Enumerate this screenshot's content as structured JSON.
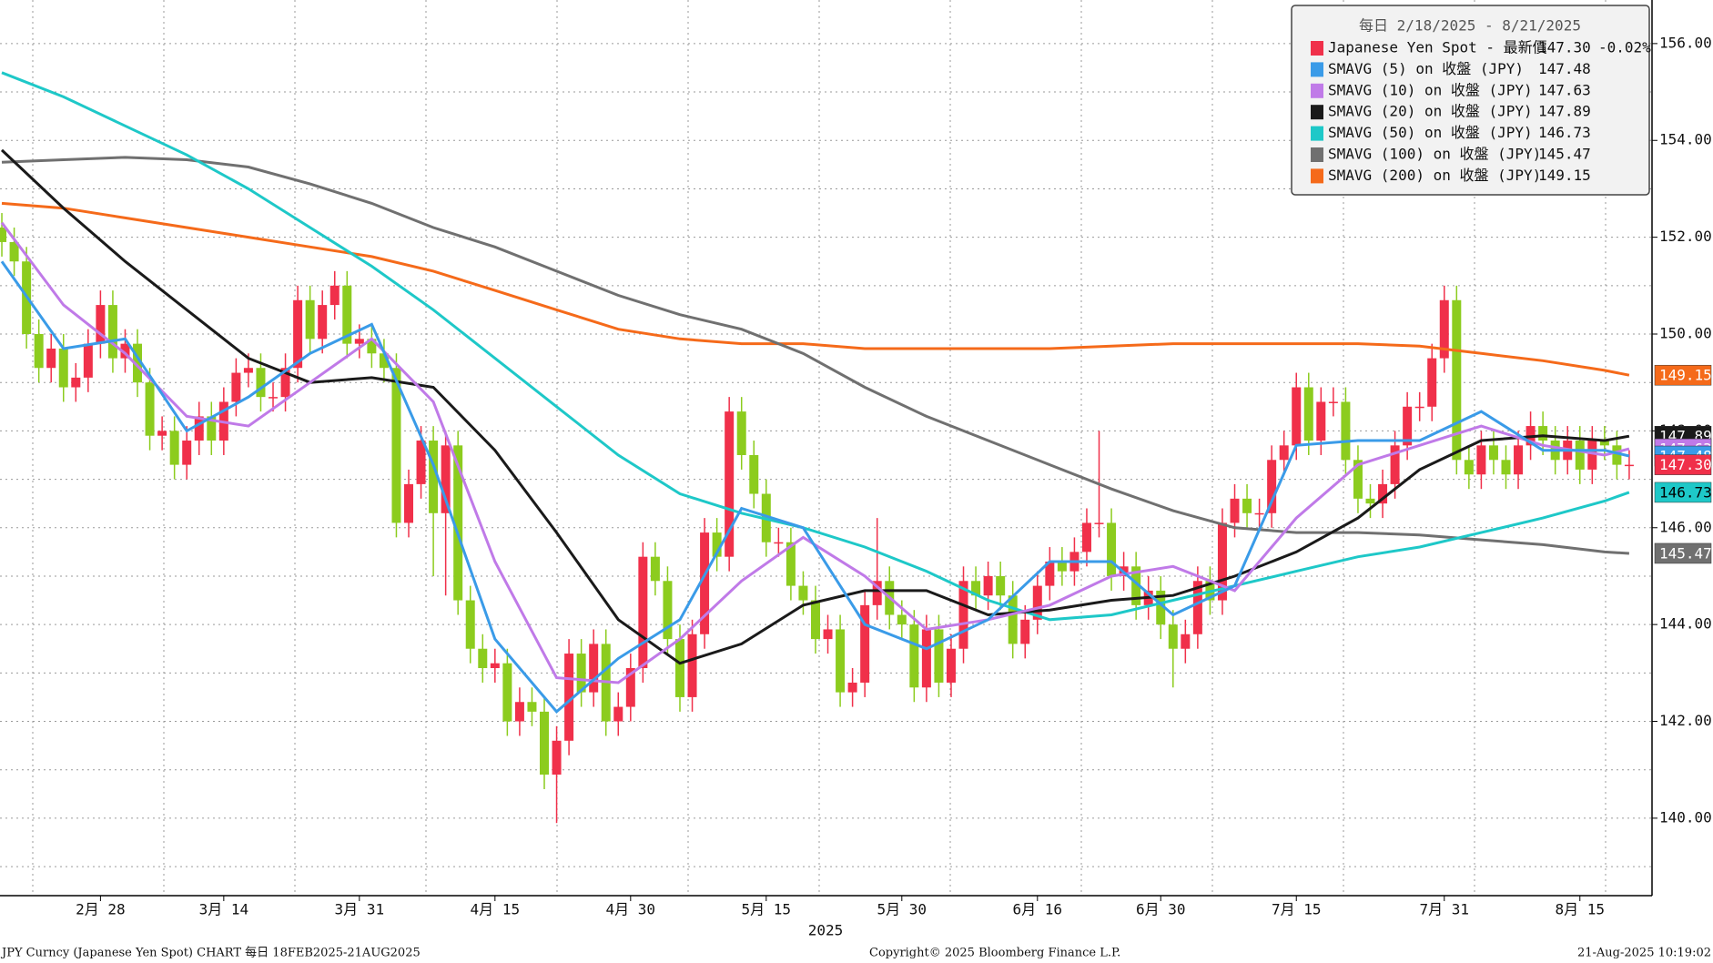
{
  "chart_data": {
    "type": "candlestick",
    "legend_title": "每日 2/18/2025 - 8/21/2025",
    "categories": [
      null,
      null,
      null,
      null,
      null,
      null,
      null,
      null,
      "2月 28",
      null,
      null,
      null,
      null,
      null,
      null,
      null,
      null,
      null,
      "3月 14",
      null,
      null,
      null,
      null,
      null,
      null,
      null,
      null,
      null,
      null,
      "3月 31",
      null,
      null,
      null,
      null,
      null,
      null,
      null,
      null,
      null,
      null,
      "4月 15",
      null,
      null,
      null,
      null,
      null,
      null,
      null,
      null,
      null,
      null,
      "4月 30",
      null,
      null,
      null,
      null,
      null,
      null,
      null,
      null,
      null,
      null,
      "5月 15",
      null,
      null,
      null,
      null,
      null,
      null,
      null,
      null,
      null,
      null,
      "5月 30",
      null,
      null,
      null,
      null,
      null,
      null,
      null,
      null,
      null,
      null,
      "6月 16",
      null,
      null,
      null,
      null,
      null,
      null,
      null,
      null,
      null,
      "6月 30",
      null,
      null,
      null,
      null,
      null,
      null,
      null,
      null,
      null,
      null,
      "7月 15",
      null,
      null,
      null,
      null,
      null,
      null,
      null,
      null,
      null,
      null,
      null,
      "7月 31",
      null,
      null,
      null,
      null,
      null,
      null,
      null,
      null,
      null,
      null,
      "8月 15",
      null,
      null,
      null,
      null
    ],
    "open": [
      152.2,
      151.9,
      151.5,
      150.0,
      149.3,
      149.7,
      148.9,
      149.1,
      149.8,
      150.6,
      149.5,
      149.8,
      149.0,
      147.9,
      148.0,
      147.3,
      147.8,
      148.3,
      147.8,
      148.6,
      149.2,
      149.3,
      148.7,
      148.7,
      149.3,
      150.7,
      149.9,
      150.6,
      151.0,
      149.8,
      149.9,
      149.6,
      149.3,
      146.1,
      146.9,
      147.8,
      146.3,
      147.7,
      144.5,
      143.5,
      143.1,
      143.2,
      142.0,
      142.4,
      142.2,
      140.9,
      141.6,
      143.4,
      142.6,
      143.6,
      142.0,
      142.3,
      143.1,
      145.4,
      144.9,
      143.7,
      142.5,
      143.8,
      145.9,
      145.4,
      148.4,
      147.5,
      146.7,
      145.7,
      145.7,
      144.8,
      144.5,
      143.7,
      143.9,
      142.6,
      142.8,
      144.4,
      144.9,
      144.2,
      144.0,
      142.7,
      143.9,
      142.8,
      143.5,
      144.9,
      144.6,
      145.0,
      144.6,
      143.6,
      144.1,
      144.8,
      145.3,
      145.1,
      145.5,
      146.1,
      146.1,
      145.0,
      145.2,
      144.4,
      144.7,
      144.0,
      143.5,
      143.8,
      144.9,
      144.5,
      146.1,
      146.6,
      146.3,
      146.3,
      147.4,
      147.7,
      148.9,
      147.8,
      148.6,
      148.6,
      147.4,
      146.6,
      146.5,
      146.9,
      147.7,
      148.5,
      148.5,
      149.5,
      150.7,
      147.4,
      147.1,
      147.7,
      147.4,
      147.1,
      147.7,
      148.1,
      147.8,
      147.4,
      147.8,
      147.2,
      147.8,
      147.7,
      147.3
    ],
    "high": [
      152.5,
      152.2,
      151.8,
      150.3,
      150.0,
      150.0,
      149.4,
      150.1,
      150.9,
      150.9,
      150.1,
      150.1,
      149.3,
      148.3,
      148.3,
      148.1,
      148.6,
      148.6,
      148.9,
      149.5,
      149.6,
      149.6,
      149.0,
      149.6,
      151.0,
      151.0,
      150.9,
      151.3,
      151.3,
      150.2,
      150.2,
      149.9,
      149.6,
      147.2,
      148.1,
      148.1,
      148.0,
      148.0,
      144.8,
      143.8,
      143.5,
      143.5,
      142.7,
      142.7,
      142.5,
      141.9,
      143.7,
      143.7,
      143.9,
      143.9,
      142.6,
      143.4,
      145.7,
      145.7,
      145.2,
      144.0,
      144.1,
      146.2,
      146.2,
      148.7,
      148.7,
      147.8,
      147.0,
      146.0,
      146.0,
      145.1,
      144.8,
      144.2,
      144.2,
      143.1,
      144.7,
      146.2,
      145.2,
      144.5,
      144.3,
      144.2,
      144.2,
      143.8,
      145.2,
      145.2,
      145.3,
      145.3,
      144.9,
      144.4,
      145.1,
      145.6,
      145.6,
      145.8,
      146.4,
      148.0,
      146.4,
      145.5,
      145.5,
      145.0,
      145.0,
      144.3,
      144.1,
      145.2,
      145.2,
      146.4,
      146.9,
      146.9,
      146.6,
      147.7,
      148.0,
      149.2,
      149.2,
      148.9,
      148.9,
      148.9,
      147.7,
      146.9,
      147.2,
      148.0,
      148.8,
      148.8,
      149.8,
      151.0,
      151.0,
      147.7,
      148.0,
      148.0,
      147.7,
      148.0,
      148.4,
      148.4,
      148.1,
      148.1,
      148.1,
      148.1,
      148.1,
      148.0,
      147.6
    ],
    "low": [
      151.6,
      151.2,
      149.7,
      149.0,
      149.0,
      148.6,
      148.6,
      148.8,
      149.5,
      149.2,
      149.2,
      148.7,
      147.6,
      147.6,
      147.0,
      147.0,
      147.5,
      147.5,
      147.5,
      148.3,
      148.9,
      148.4,
      148.4,
      148.4,
      149.0,
      149.6,
      149.6,
      150.3,
      149.5,
      149.5,
      149.3,
      149.0,
      145.8,
      145.8,
      146.6,
      145.0,
      144.6,
      144.2,
      143.2,
      142.8,
      142.8,
      141.7,
      141.7,
      141.9,
      140.6,
      139.9,
      141.3,
      142.3,
      142.3,
      141.7,
      141.7,
      142.0,
      142.8,
      144.6,
      143.4,
      142.2,
      142.2,
      143.5,
      145.1,
      145.1,
      147.2,
      146.4,
      145.4,
      145.4,
      144.5,
      144.2,
      143.4,
      143.4,
      142.3,
      142.3,
      142.5,
      144.1,
      143.9,
      143.7,
      142.4,
      142.4,
      142.5,
      142.5,
      143.2,
      144.3,
      144.3,
      144.3,
      143.3,
      143.3,
      143.8,
      144.5,
      144.8,
      144.8,
      145.2,
      145.8,
      144.7,
      144.7,
      144.1,
      144.1,
      143.7,
      142.7,
      143.2,
      143.5,
      144.2,
      144.2,
      145.8,
      146.0,
      146.0,
      146.0,
      147.1,
      147.4,
      147.5,
      147.5,
      148.3,
      147.1,
      146.3,
      146.2,
      146.2,
      146.6,
      147.4,
      148.2,
      148.2,
      149.2,
      147.1,
      146.8,
      146.8,
      147.1,
      146.8,
      146.8,
      147.4,
      147.5,
      147.1,
      147.1,
      146.9,
      146.9,
      147.4,
      147.0,
      147.0
    ],
    "close": [
      151.9,
      151.5,
      150.0,
      149.3,
      149.7,
      148.9,
      149.1,
      149.8,
      150.6,
      149.5,
      149.8,
      149.0,
      147.9,
      148.0,
      147.3,
      147.8,
      148.3,
      147.8,
      148.6,
      149.2,
      149.3,
      148.7,
      148.7,
      149.3,
      150.7,
      149.9,
      150.6,
      151.0,
      149.8,
      149.9,
      149.6,
      149.3,
      146.1,
      146.9,
      147.8,
      146.3,
      147.7,
      144.5,
      143.5,
      143.1,
      143.2,
      142.0,
      142.4,
      142.2,
      140.9,
      141.6,
      143.4,
      142.6,
      143.6,
      142.0,
      142.3,
      143.1,
      145.4,
      144.9,
      143.7,
      142.5,
      143.8,
      145.9,
      145.4,
      148.4,
      147.5,
      146.7,
      145.7,
      145.7,
      144.8,
      144.5,
      143.7,
      143.9,
      142.6,
      142.8,
      144.4,
      144.9,
      144.2,
      144.0,
      142.7,
      143.9,
      142.8,
      143.5,
      144.9,
      144.6,
      145.0,
      144.6,
      143.6,
      144.1,
      144.8,
      145.3,
      145.1,
      145.5,
      146.1,
      146.1,
      145.0,
      145.2,
      144.4,
      144.7,
      144.0,
      143.5,
      143.8,
      144.9,
      144.5,
      146.1,
      146.6,
      146.3,
      146.3,
      147.4,
      147.7,
      148.9,
      147.8,
      148.6,
      148.6,
      147.4,
      146.6,
      146.5,
      146.9,
      147.7,
      148.5,
      148.5,
      149.5,
      150.7,
      147.4,
      147.1,
      147.7,
      147.4,
      147.1,
      147.7,
      148.1,
      147.8,
      147.4,
      147.8,
      147.2,
      147.8,
      147.7,
      147.3,
      147.3
    ],
    "up_color": "#f0304a",
    "down_color": "#8ccc1e",
    "spot": {
      "name": "Japanese Yen Spot - 最新價",
      "last_label": "147.30",
      "change_label": "-0.02%",
      "color": "#f0304a"
    },
    "ma_x": [
      0,
      5,
      10,
      15,
      20,
      25,
      30,
      35,
      40,
      45,
      50,
      55,
      60,
      65,
      70,
      75,
      80,
      85,
      90,
      95,
      100,
      105,
      110,
      115,
      120,
      125,
      130,
      132
    ],
    "moving_averages": [
      {
        "name": "SMAVG (5)  on 收盤 (JPY)",
        "last_label": "147.48",
        "color": "#3a9be8",
        "values": [
          151.5,
          149.7,
          149.9,
          148.0,
          148.7,
          149.6,
          150.2,
          147.3,
          143.7,
          142.2,
          143.3,
          144.1,
          146.4,
          146.0,
          144.0,
          143.5,
          144.1,
          145.3,
          145.3,
          144.2,
          144.8,
          147.7,
          147.8,
          147.8,
          148.4,
          147.6,
          147.6,
          147.48
        ]
      },
      {
        "name": "SMAVG (10)  on 收盤 (JPY)",
        "last_label": "147.63",
        "color": "#c07ae8",
        "values": [
          152.3,
          150.6,
          149.6,
          148.3,
          148.1,
          149.0,
          149.9,
          148.6,
          145.3,
          142.9,
          142.8,
          143.7,
          144.9,
          145.8,
          145.0,
          143.9,
          144.1,
          144.4,
          145.0,
          145.2,
          144.7,
          146.2,
          147.3,
          147.7,
          148.1,
          147.7,
          147.5,
          147.63
        ]
      },
      {
        "name": "SMAVG (20)  on 收盤 (JPY)",
        "last_label": "147.89",
        "color": "#1a1a1a",
        "values": [
          153.8,
          152.6,
          151.5,
          150.5,
          149.5,
          149.0,
          149.1,
          148.9,
          147.6,
          145.9,
          144.1,
          143.2,
          143.6,
          144.4,
          144.7,
          144.7,
          144.2,
          144.3,
          144.5,
          144.6,
          145.0,
          145.5,
          146.2,
          147.2,
          147.8,
          147.9,
          147.8,
          147.89
        ]
      },
      {
        "name": "SMAVG (50)  on 收盤 (JPY)",
        "last_label": "146.73",
        "color": "#1ec8c8",
        "values": [
          155.4,
          154.9,
          154.3,
          153.7,
          153.0,
          152.2,
          151.4,
          150.5,
          149.5,
          148.5,
          147.5,
          146.7,
          146.3,
          146.0,
          145.6,
          145.1,
          144.5,
          144.1,
          144.2,
          144.5,
          144.8,
          145.1,
          145.4,
          145.6,
          145.9,
          146.2,
          146.55,
          146.73
        ]
      },
      {
        "name": "SMAVG (100)  on 收盤 (JPY)",
        "last_label": "145.47",
        "color": "#707070",
        "values": [
          153.55,
          153.6,
          153.65,
          153.6,
          153.45,
          153.1,
          152.7,
          152.2,
          151.8,
          151.3,
          150.8,
          150.4,
          150.1,
          149.6,
          148.9,
          148.3,
          147.8,
          147.3,
          146.8,
          146.35,
          146.0,
          145.9,
          145.9,
          145.85,
          145.75,
          145.65,
          145.5,
          145.47
        ]
      },
      {
        "name": "SMAVG (200)  on 收盤 (JPY)",
        "last_label": "149.15",
        "color": "#f56a1a",
        "values": [
          152.7,
          152.6,
          152.4,
          152.2,
          152.0,
          151.8,
          151.6,
          151.3,
          150.9,
          150.5,
          150.1,
          149.9,
          149.8,
          149.8,
          149.7,
          149.7,
          149.7,
          149.7,
          149.75,
          149.8,
          149.8,
          149.8,
          149.8,
          149.75,
          149.6,
          149.45,
          149.25,
          149.15
        ]
      }
    ],
    "ylim": [
      138.4,
      156.9
    ],
    "yticks": [
      {
        "value": 140,
        "label": "140.00"
      },
      {
        "value": 142,
        "label": "142.00"
      },
      {
        "value": 144,
        "label": "144.00"
      },
      {
        "value": 146,
        "label": "146.00"
      },
      {
        "value": 148,
        "label": "148.00"
      },
      {
        "value": 150,
        "label": "150.00"
      },
      {
        "value": 152,
        "label": "152.00"
      },
      {
        "value": 154,
        "label": "154.00"
      },
      {
        "value": 156,
        "label": "156.00"
      }
    ],
    "minor_yticks": [
      139,
      141,
      143,
      145,
      147,
      149,
      151,
      153,
      155
    ],
    "grid": true,
    "x_axis_label": "2025",
    "footer": {
      "left": "JPY Curncy (Japanese Yen Spot) CHART  每日 18FEB2025-21AUG2025",
      "center": "Copyright© 2025 Bloomberg Finance L.P.",
      "right": "21-Aug-2025 10:19:02"
    }
  }
}
